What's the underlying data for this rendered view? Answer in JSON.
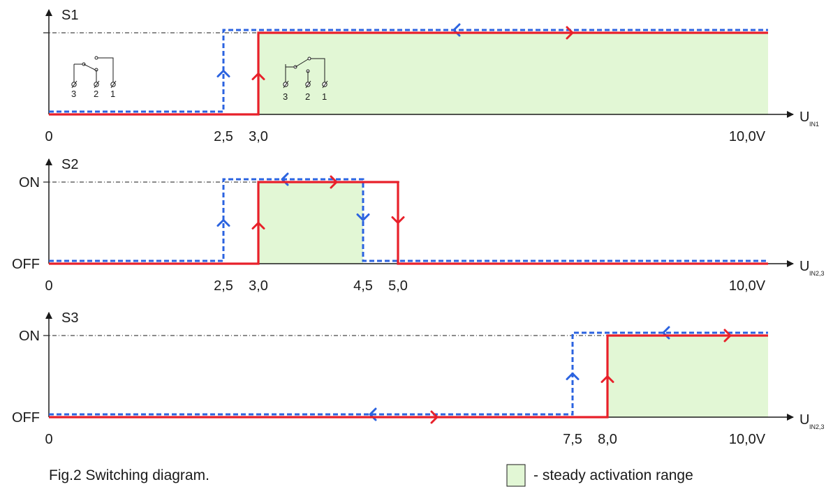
{
  "colors": {
    "rising": "#e8202a",
    "falling": "#2b63e0",
    "active_fill": "#e2f7d5",
    "axis": "#1a1a1a"
  },
  "charts": [
    {
      "id": "s1",
      "title": "S1",
      "y_high_label": "",
      "y_low_label": "",
      "axis_main": "U",
      "axis_sub": "IN1",
      "x_tick_labels": [
        "0",
        "2,5",
        "3,0",
        "10,0V"
      ],
      "x_ticks": [
        0,
        2.5,
        3.0,
        10.0
      ],
      "rising_threshold": 3.0,
      "falling_threshold": 2.5,
      "active_ranges": [
        [
          3.0,
          10.3
        ]
      ],
      "rising_path": [
        [
          0,
          0
        ],
        [
          3.0,
          0
        ],
        [
          3.0,
          1
        ],
        [
          10.3,
          1
        ]
      ],
      "falling_path": [
        [
          0,
          0
        ],
        [
          2.5,
          0
        ],
        [
          2.5,
          1
        ],
        [
          10.3,
          1
        ]
      ],
      "contact_symbols": [
        {
          "terminals": [
            "3",
            "2",
            "1"
          ],
          "state": "off"
        },
        {
          "terminals": [
            "3",
            "2",
            "1"
          ],
          "state": "on"
        }
      ]
    },
    {
      "id": "s2",
      "title": "S2",
      "y_high_label": "ON",
      "y_low_label": "OFF",
      "axis_main": "U",
      "axis_sub": "IN2,3",
      "x_tick_labels": [
        "0",
        "2,5",
        "3,0",
        "4,5",
        "5,0",
        "10,0V"
      ],
      "x_ticks": [
        0,
        2.5,
        3.0,
        4.5,
        5.0,
        10.0
      ],
      "rising_threshold_on": 3.0,
      "rising_threshold_off": 5.0,
      "falling_threshold_on": 4.5,
      "falling_threshold_off": 2.5,
      "active_ranges": [
        [
          3.0,
          4.5
        ]
      ],
      "rising_path": [
        [
          0,
          0
        ],
        [
          3.0,
          0
        ],
        [
          3.0,
          1
        ],
        [
          5.0,
          1
        ],
        [
          5.0,
          0
        ],
        [
          10.3,
          0
        ]
      ],
      "falling_path": [
        [
          0,
          0
        ],
        [
          2.5,
          0
        ],
        [
          2.5,
          1
        ],
        [
          4.5,
          1
        ],
        [
          4.5,
          0
        ],
        [
          10.3,
          0
        ]
      ]
    },
    {
      "id": "s3",
      "title": "S3",
      "y_high_label": "ON",
      "y_low_label": "OFF",
      "axis_main": "U",
      "axis_sub": "IN2,3",
      "x_tick_labels": [
        "0",
        "7,5",
        "8,0",
        "10,0V"
      ],
      "x_ticks": [
        0,
        7.5,
        8.0,
        10.0
      ],
      "rising_threshold": 8.0,
      "falling_threshold": 7.5,
      "active_ranges": [
        [
          8.0,
          10.3
        ]
      ],
      "rising_path": [
        [
          0,
          0
        ],
        [
          8.0,
          0
        ],
        [
          8.0,
          1
        ],
        [
          10.3,
          1
        ]
      ],
      "falling_path": [
        [
          0,
          0
        ],
        [
          7.5,
          0
        ],
        [
          7.5,
          1
        ],
        [
          10.3,
          1
        ]
      ]
    }
  ],
  "caption": "Fig.2 Switching diagram.",
  "legend": {
    "label": "- steady activation range"
  }
}
